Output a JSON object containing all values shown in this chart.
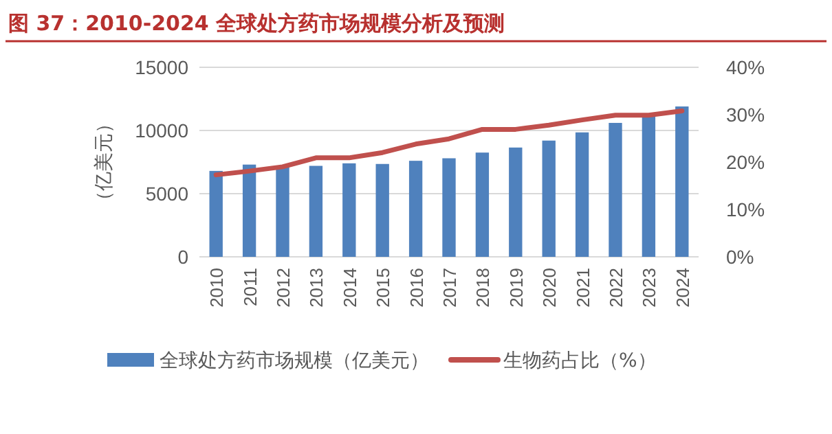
{
  "chart_data": {
    "type": "bar",
    "title": "图 37：2010-2024 全球处方药市场规模分析及预测",
    "ylabel": "（亿美元）",
    "categories": [
      "2010",
      "2011",
      "2012",
      "2013",
      "2014",
      "2015",
      "2016",
      "2017",
      "2018",
      "2019",
      "2020",
      "2021",
      "2022",
      "2023",
      "2024"
    ],
    "series": [
      {
        "name": "全球处方药市场规模（亿美元）",
        "color": "#4f81bd",
        "values": [
          6800,
          7300,
          7100,
          7200,
          7400,
          7350,
          7600,
          7800,
          8250,
          8650,
          9200,
          9850,
          10600,
          11200,
          11900
        ]
      },
      {
        "name": "生物药占比（%）",
        "type": "line",
        "axis": "y2",
        "color": "#c0504d",
        "values": [
          17.3,
          18.1,
          19.0,
          20.9,
          20.9,
          22.0,
          23.8,
          24.9,
          26.9,
          26.9,
          27.8,
          28.9,
          29.9,
          29.9,
          30.8
        ]
      }
    ],
    "ylim": [
      0,
      15000
    ],
    "yticks": [
      0,
      5000,
      10000,
      15000
    ],
    "y2lim": [
      0,
      40
    ],
    "y2ticks": [
      {
        "value": 0,
        "label": "0%"
      },
      {
        "value": 10,
        "label": "10%"
      },
      {
        "value": 20,
        "label": "20%"
      },
      {
        "value": 30,
        "label": "30%"
      },
      {
        "value": 40,
        "label": "40%"
      }
    ],
    "grid": "y",
    "legend": "bottom",
    "marker": "none",
    "line_style": "solid"
  }
}
